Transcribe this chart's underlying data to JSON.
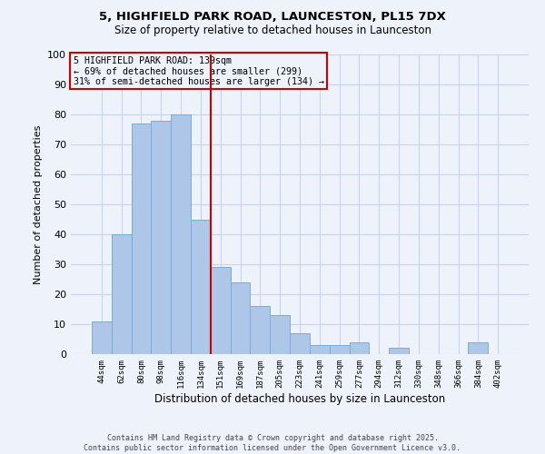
{
  "title_line1": "5, HIGHFIELD PARK ROAD, LAUNCESTON, PL15 7DX",
  "title_line2": "Size of property relative to detached houses in Launceston",
  "xlabel": "Distribution of detached houses by size in Launceston",
  "ylabel": "Number of detached properties",
  "bar_labels": [
    "44sqm",
    "62sqm",
    "80sqm",
    "98sqm",
    "116sqm",
    "134sqm",
    "151sqm",
    "169sqm",
    "187sqm",
    "205sqm",
    "223sqm",
    "241sqm",
    "259sqm",
    "277sqm",
    "294sqm",
    "312sqm",
    "330sqm",
    "348sqm",
    "366sqm",
    "384sqm",
    "402sqm"
  ],
  "bar_values": [
    11,
    40,
    77,
    78,
    80,
    45,
    29,
    24,
    16,
    13,
    7,
    3,
    3,
    4,
    0,
    2,
    0,
    0,
    0,
    4,
    0
  ],
  "bar_color": "#aec6e8",
  "bar_edge_color": "#7aadd4",
  "vline_x_index": 5,
  "vline_color": "#cc0000",
  "ylim": [
    0,
    100
  ],
  "yticks": [
    0,
    10,
    20,
    30,
    40,
    50,
    60,
    70,
    80,
    90,
    100
  ],
  "annotation_title": "5 HIGHFIELD PARK ROAD: 139sqm",
  "annotation_line2": "← 69% of detached houses are smaller (299)",
  "annotation_line3": "31% of semi-detached houses are larger (134) →",
  "annotation_box_color": "#cc0000",
  "footer_line1": "Contains HM Land Registry data © Crown copyright and database right 2025.",
  "footer_line2": "Contains public sector information licensed under the Open Government Licence v3.0.",
  "background_color": "#eef2fb",
  "grid_color": "#c8d4ec"
}
